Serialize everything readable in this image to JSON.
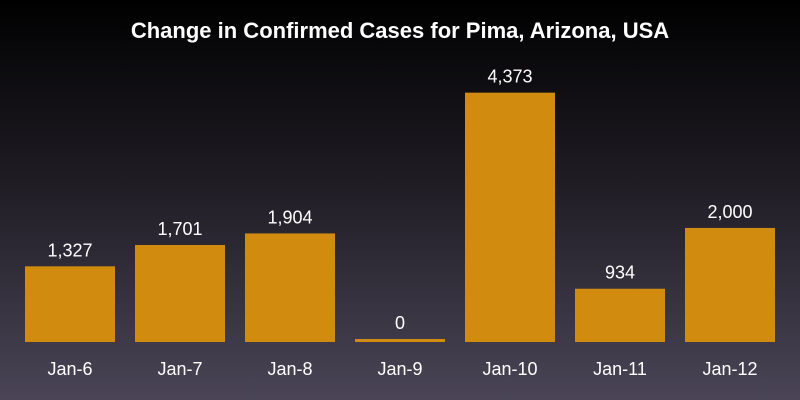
{
  "chart_data": {
    "type": "bar",
    "title": "Change in Confirmed Cases for Pima, Arizona, USA",
    "categories": [
      "Jan-6",
      "Jan-7",
      "Jan-8",
      "Jan-9",
      "Jan-10",
      "Jan-11",
      "Jan-12"
    ],
    "values": [
      1327,
      1701,
      1904,
      0,
      4373,
      934,
      2000
    ],
    "value_labels": [
      "1,327",
      "1,701",
      "1,904",
      "0",
      "4,373",
      "934",
      "2,000"
    ],
    "bar_color": "#d18c10",
    "background_top_color": "#000000",
    "background_bottom_color": "#4a4556",
    "text_color": "#ffffff",
    "xlabel": "",
    "ylabel": "",
    "ylim": [
      0,
      4700
    ],
    "grid": false,
    "legend": "none"
  }
}
